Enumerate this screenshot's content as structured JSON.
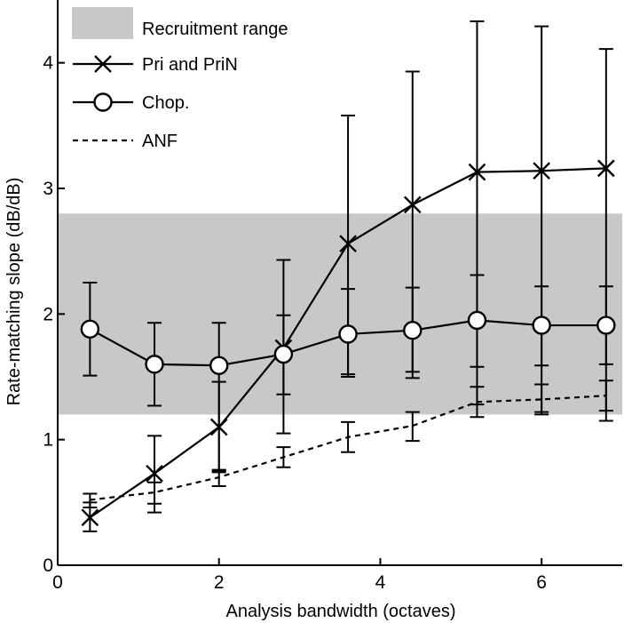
{
  "chart_data": {
    "type": "line",
    "xlabel": "Analysis bandwidth (octaves)",
    "ylabel": "Rate-matching slope (dB/dB)",
    "xlim": [
      0,
      7
    ],
    "ylim": [
      0,
      4.5
    ],
    "xticks": [
      0,
      2,
      4,
      6
    ],
    "yticks": [
      0,
      1,
      2,
      3,
      4
    ],
    "grid": false,
    "legend_position": "top-left",
    "band": {
      "name": "Recruitment range",
      "y_range": [
        1.2,
        2.8
      ],
      "color": "#c8c8c8"
    },
    "series": [
      {
        "name": "Pri and PriN",
        "marker": "x",
        "line": "solid",
        "x": [
          0.4,
          1.2,
          2.0,
          2.8,
          3.6,
          4.4,
          5.2,
          6.0,
          6.8
        ],
        "y": [
          0.38,
          0.73,
          1.1,
          1.73,
          2.56,
          2.87,
          3.13,
          3.14,
          3.16
        ],
        "err_low": [
          0.11,
          0.31,
          0.35,
          0.37,
          1.06,
          1.38,
          1.85,
          1.92,
          2.01
        ],
        "err_high": [
          0.12,
          0.3,
          0.36,
          0.7,
          1.02,
          1.06,
          1.2,
          1.15,
          0.95
        ]
      },
      {
        "name": "Chop.",
        "marker": "o",
        "line": "solid",
        "x": [
          0.4,
          1.2,
          2.0,
          2.8,
          3.6,
          4.4,
          5.2,
          6.0,
          6.8
        ],
        "y": [
          1.88,
          1.6,
          1.59,
          1.68,
          1.84,
          1.87,
          1.95,
          1.91,
          1.91
        ],
        "err_low": [
          0.37,
          0.33,
          0.85,
          0.63,
          0.32,
          0.33,
          0.37,
          0.32,
          0.31
        ],
        "err_high": [
          0.37,
          0.33,
          0.34,
          0.31,
          0.36,
          0.34,
          0.36,
          0.31,
          0.31
        ]
      },
      {
        "name": "ANF",
        "marker": "none",
        "line": "dashed",
        "x": [
          0.4,
          1.2,
          2.0,
          2.8,
          3.6,
          4.4,
          5.2,
          6.0,
          6.8
        ],
        "y": [
          0.52,
          0.58,
          0.7,
          0.86,
          1.02,
          1.11,
          1.3,
          1.32,
          1.35
        ],
        "err_low": [
          0.06,
          0.09,
          0.07,
          0.08,
          0.12,
          0.12,
          0.12,
          0.12,
          0.12
        ],
        "err_high": [
          0.05,
          0.08,
          0.06,
          0.08,
          0.12,
          0.11,
          0.12,
          0.12,
          0.12
        ]
      }
    ]
  }
}
